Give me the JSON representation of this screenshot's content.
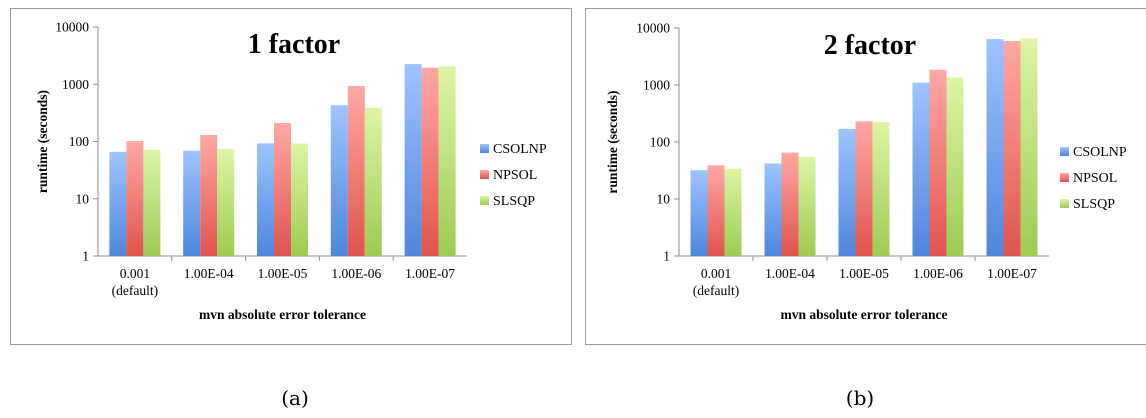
{
  "chart_data": [
    {
      "type": "bar",
      "title": "1 factor",
      "xlabel": "mvn absolute error tolerance",
      "ylabel": "runtime (seconds)",
      "yscale": "log",
      "ylim": [
        1,
        10000
      ],
      "yticks": [
        "1",
        "10",
        "100",
        "1000",
        "10000"
      ],
      "categories": [
        [
          "0.001",
          "(default)"
        ],
        [
          "1.00E-04"
        ],
        [
          "1.00E-05"
        ],
        [
          "1.00E-06"
        ],
        [
          "1.00E-07"
        ]
      ],
      "series": [
        {
          "name": "CSOLNP",
          "values": [
            66,
            69,
            93,
            430,
            2250
          ]
        },
        {
          "name": "NPSOL",
          "values": [
            102,
            130,
            210,
            930,
            1950
          ]
        },
        {
          "name": "SLSQP",
          "values": [
            72,
            74,
            92,
            390,
            2050
          ]
        }
      ],
      "legend": "right",
      "grid": false
    },
    {
      "type": "bar",
      "title": "2 factor",
      "xlabel": "mvn absolute error tolerance",
      "ylabel": "runtime (seconds)",
      "yscale": "log",
      "ylim": [
        1,
        10000
      ],
      "yticks": [
        "1",
        "10",
        "100",
        "1000",
        "10000"
      ],
      "categories": [
        [
          "0.001",
          "(default)"
        ],
        [
          "1.00E-04"
        ],
        [
          "1.00E-05"
        ],
        [
          "1.00E-06"
        ],
        [
          "1.00E-07"
        ]
      ],
      "series": [
        {
          "name": "CSOLNP",
          "values": [
            32,
            42,
            170,
            1100,
            6400
          ]
        },
        {
          "name": "NPSOL",
          "values": [
            39,
            65,
            230,
            1850,
            5900
          ]
        },
        {
          "name": "SLSQP",
          "values": [
            34,
            55,
            225,
            1350,
            6600
          ]
        }
      ],
      "legend": "right",
      "grid": false
    }
  ],
  "colors": {
    "CSOLNP": [
      "#9ec4ff",
      "#4f86dc"
    ],
    "NPSOL": [
      "#ffa8a4",
      "#e0544e"
    ],
    "SLSQP": [
      "#ddf5a6",
      "#9dcb52"
    ]
  },
  "sublabels": {
    "a": "(a)",
    "b": "(b)"
  }
}
